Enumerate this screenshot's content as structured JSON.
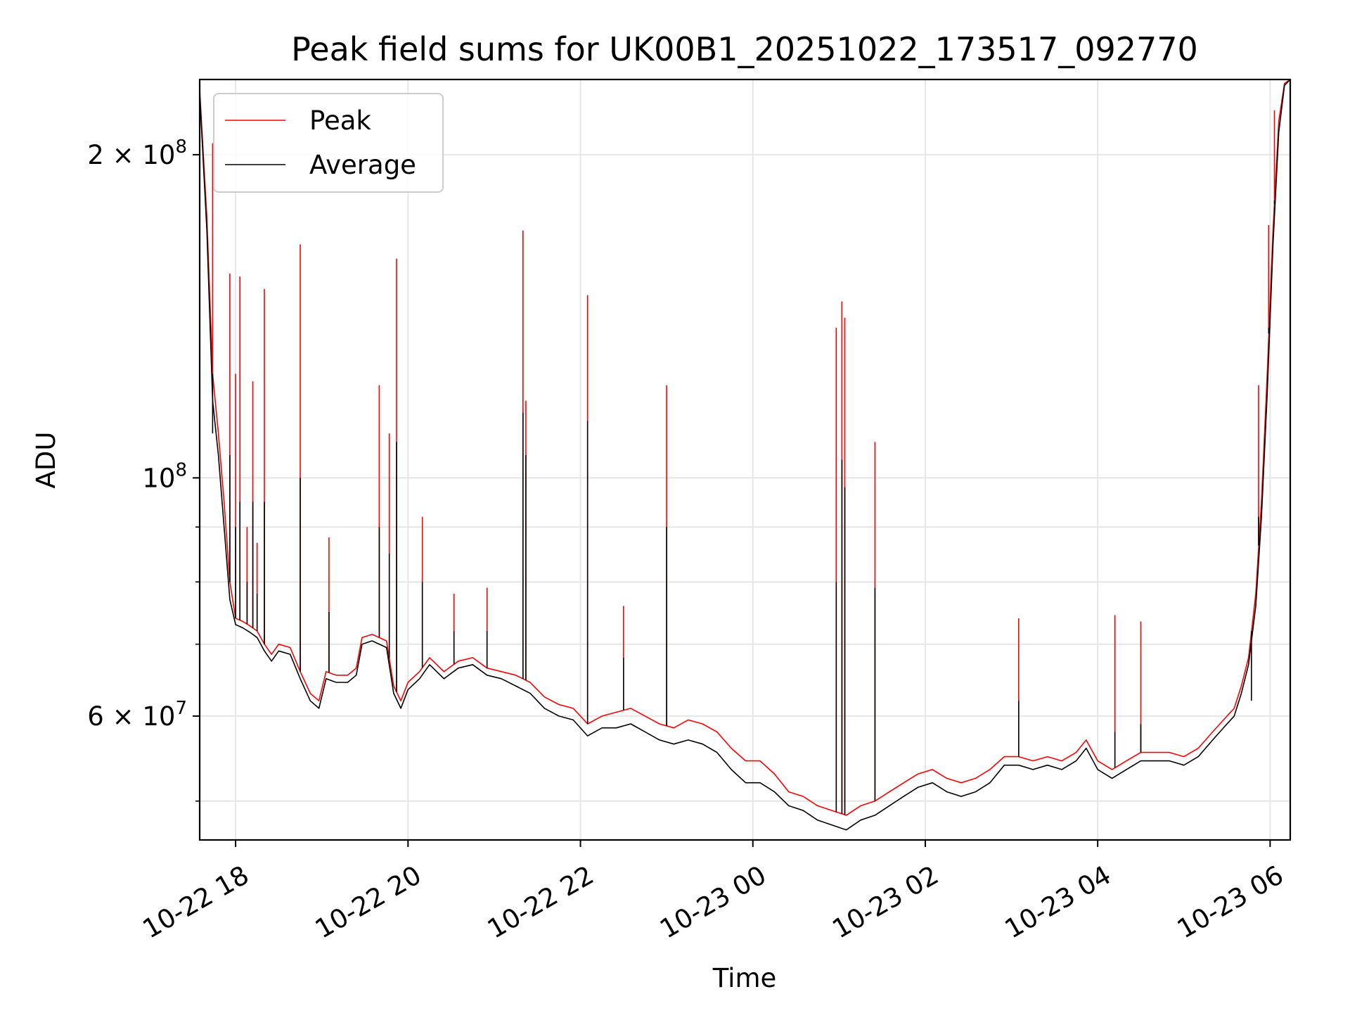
{
  "chart_data": {
    "type": "line",
    "title": "Peak field sums for UK00B1_20251022_173517_092770",
    "xlabel": "Time",
    "ylabel": "ADU",
    "x_ticks": [
      "10-22 18",
      "10-22 20",
      "10-22 22",
      "10-23 00",
      "10-23 02",
      "10-23 04",
      "10-23 06"
    ],
    "y_ticks": [
      {
        "value": 60000000,
        "mantissa": "6",
        "exponent": "7"
      },
      {
        "value": 100000000,
        "mantissa": "",
        "exponent": "8"
      },
      {
        "value": 200000000,
        "mantissa": "2",
        "exponent": "8"
      }
    ],
    "y_scale": "log",
    "xlim": [
      "2025-10-22 17:35",
      "2025-10-23 06:14"
    ],
    "ylim": [
      46000000,
      235000000
    ],
    "grid": true,
    "legend_position": "top-left",
    "series": [
      {
        "name": "Peak",
        "color": "#ff0000",
        "points": [
          [
            "2025-10-22 17:35",
            230000000
          ],
          [
            "2025-10-22 17:40",
            175000000
          ],
          [
            "2025-10-22 17:44",
            125000000
          ],
          [
            "2025-10-22 17:48",
            110000000
          ],
          [
            "2025-10-22 17:52",
            95000000
          ],
          [
            "2025-10-22 17:56",
            80000000
          ],
          [
            "2025-10-22 18:00",
            74000000
          ],
          [
            "2025-10-22 18:05",
            73500000
          ],
          [
            "2025-10-22 18:10",
            72800000
          ],
          [
            "2025-10-22 18:15",
            72000000
          ],
          [
            "2025-10-22 18:20",
            70000000
          ],
          [
            "2025-10-22 18:25",
            68500000
          ],
          [
            "2025-10-22 18:30",
            70000000
          ],
          [
            "2025-10-22 18:38",
            69500000
          ],
          [
            "2025-10-22 18:45",
            66000000
          ],
          [
            "2025-10-22 18:52",
            63000000
          ],
          [
            "2025-10-22 18:58",
            62000000
          ],
          [
            "2025-10-22 19:03",
            66000000
          ],
          [
            "2025-10-22 19:10",
            65500000
          ],
          [
            "2025-10-22 19:18",
            65500000
          ],
          [
            "2025-10-22 19:24",
            66500000
          ],
          [
            "2025-10-22 19:28",
            71000000
          ],
          [
            "2025-10-22 19:35",
            71500000
          ],
          [
            "2025-10-22 19:45",
            70500000
          ],
          [
            "2025-10-22 19:50",
            64000000
          ],
          [
            "2025-10-22 19:55",
            62000000
          ],
          [
            "2025-10-22 20:00",
            64500000
          ],
          [
            "2025-10-22 20:08",
            66000000
          ],
          [
            "2025-10-22 20:15",
            68000000
          ],
          [
            "2025-10-22 20:25",
            66000000
          ],
          [
            "2025-10-22 20:35",
            67500000
          ],
          [
            "2025-10-22 20:45",
            68000000
          ],
          [
            "2025-10-22 20:55",
            66500000
          ],
          [
            "2025-10-22 21:05",
            66000000
          ],
          [
            "2025-10-22 21:15",
            65500000
          ],
          [
            "2025-10-22 21:25",
            64500000
          ],
          [
            "2025-10-22 21:35",
            62500000
          ],
          [
            "2025-10-22 21:45",
            61500000
          ],
          [
            "2025-10-22 21:55",
            61000000
          ],
          [
            "2025-10-22 22:05",
            59000000
          ],
          [
            "2025-10-22 22:15",
            60000000
          ],
          [
            "2025-10-22 22:25",
            60500000
          ],
          [
            "2025-10-22 22:35",
            61000000
          ],
          [
            "2025-10-22 22:45",
            60000000
          ],
          [
            "2025-10-22 22:55",
            59000000
          ],
          [
            "2025-10-22 23:05",
            58500000
          ],
          [
            "2025-10-22 23:15",
            59500000
          ],
          [
            "2025-10-22 23:25",
            59000000
          ],
          [
            "2025-10-22 23:35",
            58000000
          ],
          [
            "2025-10-22 23:45",
            56000000
          ],
          [
            "2025-10-22 23:55",
            54500000
          ],
          [
            "2025-10-23 00:05",
            54500000
          ],
          [
            "2025-10-23 00:15",
            53000000
          ],
          [
            "2025-10-23 00:25",
            51000000
          ],
          [
            "2025-10-23 00:35",
            50500000
          ],
          [
            "2025-10-23 00:45",
            49500000
          ],
          [
            "2025-10-23 00:55",
            49000000
          ],
          [
            "2025-10-23 01:05",
            48500000
          ],
          [
            "2025-10-23 01:15",
            49500000
          ],
          [
            "2025-10-23 01:25",
            50000000
          ],
          [
            "2025-10-23 01:35",
            51000000
          ],
          [
            "2025-10-23 01:45",
            52000000
          ],
          [
            "2025-10-23 01:55",
            53000000
          ],
          [
            "2025-10-23 02:05",
            53500000
          ],
          [
            "2025-10-23 02:15",
            52500000
          ],
          [
            "2025-10-23 02:25",
            52000000
          ],
          [
            "2025-10-23 02:35",
            52500000
          ],
          [
            "2025-10-23 02:45",
            53500000
          ],
          [
            "2025-10-23 02:55",
            55000000
          ],
          [
            "2025-10-23 03:05",
            55000000
          ],
          [
            "2025-10-23 03:15",
            54500000
          ],
          [
            "2025-10-23 03:25",
            55000000
          ],
          [
            "2025-10-23 03:35",
            54500000
          ],
          [
            "2025-10-23 03:45",
            55500000
          ],
          [
            "2025-10-23 03:52",
            57000000
          ],
          [
            "2025-10-23 04:00",
            54500000
          ],
          [
            "2025-10-23 04:10",
            53500000
          ],
          [
            "2025-10-23 04:20",
            54500000
          ],
          [
            "2025-10-23 04:30",
            55500000
          ],
          [
            "2025-10-23 04:40",
            55500000
          ],
          [
            "2025-10-23 04:50",
            55500000
          ],
          [
            "2025-10-23 05:00",
            55000000
          ],
          [
            "2025-10-23 05:10",
            56000000
          ],
          [
            "2025-10-23 05:20",
            58000000
          ],
          [
            "2025-10-23 05:30",
            60000000
          ],
          [
            "2025-10-23 05:35",
            61000000
          ],
          [
            "2025-10-23 05:40",
            64000000
          ],
          [
            "2025-10-23 05:45",
            68000000
          ],
          [
            "2025-10-23 05:50",
            78000000
          ],
          [
            "2025-10-23 05:54",
            95000000
          ],
          [
            "2025-10-23 05:58",
            125000000
          ],
          [
            "2025-10-23 06:02",
            170000000
          ],
          [
            "2025-10-23 06:06",
            215000000
          ],
          [
            "2025-10-23 06:10",
            233000000
          ],
          [
            "2025-10-23 06:14",
            235000000
          ]
        ]
      },
      {
        "name": "Average",
        "color": "#000000",
        "points": [
          [
            "2025-10-22 17:35",
            228000000
          ],
          [
            "2025-10-22 17:40",
            170000000
          ],
          [
            "2025-10-22 17:44",
            118000000
          ],
          [
            "2025-10-22 17:48",
            105000000
          ],
          [
            "2025-10-22 17:52",
            90000000
          ],
          [
            "2025-10-22 17:56",
            77000000
          ],
          [
            "2025-10-22 18:00",
            73000000
          ],
          [
            "2025-10-22 18:05",
            72500000
          ],
          [
            "2025-10-22 18:10",
            71800000
          ],
          [
            "2025-10-22 18:15",
            71000000
          ],
          [
            "2025-10-22 18:20",
            69000000
          ],
          [
            "2025-10-22 18:25",
            67500000
          ],
          [
            "2025-10-22 18:30",
            69000000
          ],
          [
            "2025-10-22 18:38",
            68500000
          ],
          [
            "2025-10-22 18:45",
            65000000
          ],
          [
            "2025-10-22 18:52",
            62000000
          ],
          [
            "2025-10-22 18:58",
            61000000
          ],
          [
            "2025-10-22 19:03",
            65000000
          ],
          [
            "2025-10-22 19:10",
            64500000
          ],
          [
            "2025-10-22 19:18",
            64500000
          ],
          [
            "2025-10-22 19:24",
            65500000
          ],
          [
            "2025-10-22 19:28",
            70000000
          ],
          [
            "2025-10-22 19:35",
            70500000
          ],
          [
            "2025-10-22 19:45",
            69500000
          ],
          [
            "2025-10-22 19:50",
            63000000
          ],
          [
            "2025-10-22 19:55",
            61000000
          ],
          [
            "2025-10-22 20:00",
            63500000
          ],
          [
            "2025-10-22 20:08",
            65000000
          ],
          [
            "2025-10-22 20:15",
            67000000
          ],
          [
            "2025-10-22 20:25",
            65000000
          ],
          [
            "2025-10-22 20:35",
            66500000
          ],
          [
            "2025-10-22 20:45",
            67000000
          ],
          [
            "2025-10-22 20:55",
            65500000
          ],
          [
            "2025-10-22 21:05",
            65000000
          ],
          [
            "2025-10-22 21:15",
            64000000
          ],
          [
            "2025-10-22 21:25",
            63000000
          ],
          [
            "2025-10-22 21:35",
            61000000
          ],
          [
            "2025-10-22 21:45",
            60000000
          ],
          [
            "2025-10-22 21:55",
            59500000
          ],
          [
            "2025-10-22 22:05",
            57500000
          ],
          [
            "2025-10-22 22:15",
            58500000
          ],
          [
            "2025-10-22 22:25",
            58500000
          ],
          [
            "2025-10-22 22:35",
            59000000
          ],
          [
            "2025-10-22 22:45",
            58000000
          ],
          [
            "2025-10-22 22:55",
            57000000
          ],
          [
            "2025-10-22 23:05",
            56500000
          ],
          [
            "2025-10-22 23:15",
            57000000
          ],
          [
            "2025-10-22 23:25",
            56500000
          ],
          [
            "2025-10-22 23:35",
            55500000
          ],
          [
            "2025-10-22 23:45",
            53500000
          ],
          [
            "2025-10-22 23:55",
            52000000
          ],
          [
            "2025-10-23 00:05",
            52000000
          ],
          [
            "2025-10-23 00:15",
            51000000
          ],
          [
            "2025-10-23 00:25",
            49500000
          ],
          [
            "2025-10-23 00:35",
            49000000
          ],
          [
            "2025-10-23 00:45",
            48000000
          ],
          [
            "2025-10-23 00:55",
            47500000
          ],
          [
            "2025-10-23 01:05",
            47000000
          ],
          [
            "2025-10-23 01:15",
            48000000
          ],
          [
            "2025-10-23 01:25",
            48500000
          ],
          [
            "2025-10-23 01:35",
            49500000
          ],
          [
            "2025-10-23 01:45",
            50500000
          ],
          [
            "2025-10-23 01:55",
            51500000
          ],
          [
            "2025-10-23 02:05",
            52000000
          ],
          [
            "2025-10-23 02:15",
            51000000
          ],
          [
            "2025-10-23 02:25",
            50500000
          ],
          [
            "2025-10-23 02:35",
            51000000
          ],
          [
            "2025-10-23 02:45",
            52000000
          ],
          [
            "2025-10-23 02:55",
            54000000
          ],
          [
            "2025-10-23 03:05",
            54000000
          ],
          [
            "2025-10-23 03:15",
            53500000
          ],
          [
            "2025-10-23 03:25",
            54000000
          ],
          [
            "2025-10-23 03:35",
            53500000
          ],
          [
            "2025-10-23 03:45",
            54500000
          ],
          [
            "2025-10-23 03:52",
            56000000
          ],
          [
            "2025-10-23 04:00",
            53500000
          ],
          [
            "2025-10-23 04:10",
            52500000
          ],
          [
            "2025-10-23 04:20",
            53500000
          ],
          [
            "2025-10-23 04:30",
            54500000
          ],
          [
            "2025-10-23 04:40",
            54500000
          ],
          [
            "2025-10-23 04:50",
            54500000
          ],
          [
            "2025-10-23 05:00",
            54000000
          ],
          [
            "2025-10-23 05:10",
            55000000
          ],
          [
            "2025-10-23 05:20",
            57000000
          ],
          [
            "2025-10-23 05:30",
            59000000
          ],
          [
            "2025-10-23 05:35",
            60000000
          ],
          [
            "2025-10-23 05:40",
            63000000
          ],
          [
            "2025-10-23 05:45",
            67000000
          ],
          [
            "2025-10-23 05:50",
            76000000
          ],
          [
            "2025-10-23 05:54",
            92000000
          ],
          [
            "2025-10-23 05:58",
            120000000
          ],
          [
            "2025-10-23 06:02",
            165000000
          ],
          [
            "2025-10-23 06:06",
            210000000
          ],
          [
            "2025-10-23 06:10",
            232000000
          ],
          [
            "2025-10-23 06:14",
            235000000
          ]
        ]
      }
    ],
    "spikes": [
      {
        "time": "2025-10-22 17:44",
        "peak": 205000000,
        "average": 110000000
      },
      {
        "time": "2025-10-22 17:56",
        "peak": 155000000,
        "average": 105000000
      },
      {
        "time": "2025-10-22 18:00",
        "peak": 125000000,
        "average": 90000000
      },
      {
        "time": "2025-10-22 18:03",
        "peak": 154000000,
        "average": 95000000
      },
      {
        "time": "2025-10-22 18:08",
        "peak": 90000000,
        "average": 80000000
      },
      {
        "time": "2025-10-22 18:12",
        "peak": 123000000,
        "average": 95000000
      },
      {
        "time": "2025-10-22 18:15",
        "peak": 87000000,
        "average": 78000000
      },
      {
        "time": "2025-10-22 18:20",
        "peak": 150000000,
        "average": 95000000
      },
      {
        "time": "2025-10-22 18:45",
        "peak": 165000000,
        "average": 100000000
      },
      {
        "time": "2025-10-22 19:05",
        "peak": 88000000,
        "average": 75000000
      },
      {
        "time": "2025-10-22 19:40",
        "peak": 122000000,
        "average": 90000000
      },
      {
        "time": "2025-10-22 19:47",
        "peak": 110000000,
        "average": 85000000
      },
      {
        "time": "2025-10-22 19:52",
        "peak": 160000000,
        "average": 108000000
      },
      {
        "time": "2025-10-22 20:10",
        "peak": 92000000,
        "average": 80000000
      },
      {
        "time": "2025-10-22 20:32",
        "peak": 78000000,
        "average": 72000000
      },
      {
        "time": "2025-10-22 20:55",
        "peak": 79000000,
        "average": 72000000
      },
      {
        "time": "2025-10-22 21:20",
        "peak": 170000000,
        "average": 115000000
      },
      {
        "time": "2025-10-22 21:22",
        "peak": 118000000,
        "average": 105000000
      },
      {
        "time": "2025-10-22 22:05",
        "peak": 148000000,
        "average": 113000000
      },
      {
        "time": "2025-10-22 22:30",
        "peak": 76000000,
        "average": 68000000
      },
      {
        "time": "2025-10-22 23:00",
        "peak": 122000000,
        "average": 90000000
      },
      {
        "time": "2025-10-23 00:58",
        "peak": 138000000,
        "average": 80000000
      },
      {
        "time": "2025-10-23 01:02",
        "peak": 146000000,
        "average": 104000000
      },
      {
        "time": "2025-10-23 01:04",
        "peak": 141000000,
        "average": 98000000
      },
      {
        "time": "2025-10-23 01:25",
        "peak": 108000000,
        "average": 79000000
      },
      {
        "time": "2025-10-23 03:05",
        "peak": 74000000,
        "average": 62000000
      },
      {
        "time": "2025-10-23 04:12",
        "peak": 74500000,
        "average": 58000000
      },
      {
        "time": "2025-10-23 04:30",
        "peak": 73500000,
        "average": 59000000
      },
      {
        "time": "2025-10-23 05:47",
        "peak": 67000000,
        "average": 62000000
      },
      {
        "time": "2025-10-23 05:52",
        "peak": 122000000,
        "average": 92000000
      },
      {
        "time": "2025-10-23 05:59",
        "peak": 172000000,
        "average": 138000000
      },
      {
        "time": "2025-10-23 06:03",
        "peak": 220000000,
        "average": 180000000
      }
    ]
  }
}
